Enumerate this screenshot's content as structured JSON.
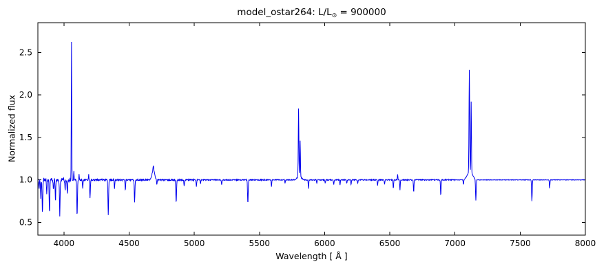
{
  "chart_data": {
    "type": "line",
    "title": "model_ostar264: L/L⊙ = 900000",
    "title_parts": {
      "prefix": "model_ostar264: L/L",
      "sub": "⊙",
      "suffix": " = 900000"
    },
    "xlabel": "Wavelength [ Å ]",
    "ylabel": "Normalized flux",
    "xlim": [
      3800,
      8000
    ],
    "ylim": [
      0.35,
      2.85
    ],
    "xticks": [
      4000,
      4500,
      5000,
      5500,
      6000,
      6500,
      7000,
      7500,
      8000
    ],
    "xtick_labels": [
      "4000",
      "4500",
      "5000",
      "5500",
      "6000",
      "6500",
      "7000",
      "7500",
      "8000"
    ],
    "yticks": [
      0.5,
      1.0,
      1.5,
      2.0,
      2.5
    ],
    "ytick_labels": [
      "0.5",
      "1.0",
      "1.5",
      "2.0",
      "2.5"
    ],
    "grid": false,
    "legend": false,
    "line_color": "#0000ee",
    "axis_color": "#000000",
    "background_color": "#ffffff",
    "baseline": 1.0,
    "sample_step": 2,
    "noise_regions": [
      {
        "until": 4050,
        "amplitude": 0.025
      },
      {
        "until": 5000,
        "amplitude": 0.009
      },
      {
        "until": 7000,
        "amplitude": 0.006
      },
      {
        "until": 8001,
        "amplitude": 0.003
      }
    ],
    "feature_format": [
      "center_angstrom",
      "amplitude_relative_to_continuum",
      "sigma_angstrom"
    ],
    "features": [
      [
        3810,
        -0.12,
        3
      ],
      [
        3822,
        -0.2,
        3
      ],
      [
        3835,
        -0.4,
        3.5
      ],
      [
        3868,
        -0.18,
        3
      ],
      [
        3889,
        -0.4,
        3.5
      ],
      [
        3920,
        -0.12,
        3
      ],
      [
        3935,
        -0.25,
        3
      ],
      [
        3968,
        -0.42,
        3.5
      ],
      [
        4009,
        -0.12,
        3
      ],
      [
        4026,
        -0.18,
        3
      ],
      [
        4058,
        1.63,
        2.5
      ],
      [
        4076,
        0.1,
        2.5
      ],
      [
        4101,
        -0.43,
        3.5
      ],
      [
        4116,
        0.07,
        2.5
      ],
      [
        4144,
        -0.1,
        3
      ],
      [
        4190,
        0.06,
        2.5
      ],
      [
        4200,
        -0.22,
        3.5
      ],
      [
        4340,
        -0.42,
        3.5
      ],
      [
        4388,
        -0.1,
        3
      ],
      [
        4471,
        -0.12,
        3
      ],
      [
        4542,
        -0.26,
        3.5
      ],
      [
        4686,
        0.12,
        14
      ],
      [
        4686,
        0.05,
        3
      ],
      [
        4713,
        -0.06,
        3
      ],
      [
        4861,
        -0.27,
        4
      ],
      [
        4922,
        -0.07,
        3
      ],
      [
        5016,
        -0.08,
        3
      ],
      [
        5048,
        -0.05,
        3
      ],
      [
        5210,
        -0.06,
        3
      ],
      [
        5411,
        -0.28,
        3.5
      ],
      [
        5592,
        -0.08,
        3
      ],
      [
        5696,
        -0.04,
        3
      ],
      [
        5800,
        0.8,
        3.2
      ],
      [
        5806,
        0.05,
        20
      ],
      [
        5812,
        0.42,
        3
      ],
      [
        5876,
        -0.1,
        3
      ],
      [
        5940,
        -0.04,
        3
      ],
      [
        6004,
        -0.04,
        3
      ],
      [
        6070,
        -0.05,
        3
      ],
      [
        6118,
        -0.06,
        3
      ],
      [
        6170,
        -0.04,
        3
      ],
      [
        6203,
        -0.06,
        3
      ],
      [
        6254,
        -0.04,
        3
      ],
      [
        6406,
        -0.07,
        3
      ],
      [
        6460,
        -0.05,
        3
      ],
      [
        6527,
        -0.1,
        3
      ],
      [
        6560,
        0.07,
        2.5
      ],
      [
        6578,
        -0.12,
        3
      ],
      [
        6683,
        -0.15,
        3
      ],
      [
        6891,
        -0.18,
        3.5
      ],
      [
        7065,
        -0.06,
        3
      ],
      [
        7110,
        1.2,
        3.5
      ],
      [
        7115,
        0.1,
        28
      ],
      [
        7124,
        0.83,
        3
      ],
      [
        7160,
        -0.25,
        3.5
      ],
      [
        7590,
        -0.25,
        3.5
      ],
      [
        7726,
        -0.1,
        3
      ]
    ]
  }
}
